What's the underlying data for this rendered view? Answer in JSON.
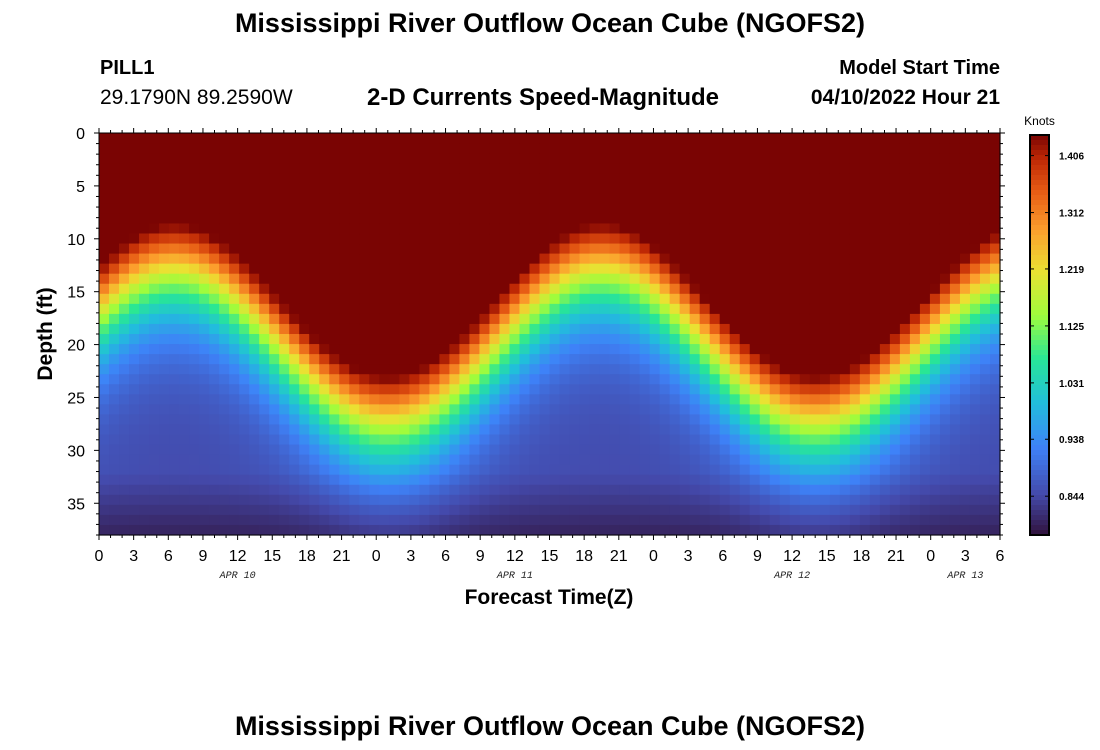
{
  "header": {
    "title": "Mississippi River Outflow Ocean Cube (NGOFS2)",
    "station": "PILL1",
    "coords": "29.1790N  89.2590W",
    "subtitle": "2-D Currents Speed-Magnitude",
    "model_label": "Model Start Time",
    "model_time": "04/10/2022 Hour 21"
  },
  "footer": {
    "title": "Mississippi River Outflow Ocean Cube (NGOFS2)"
  },
  "chart_data": {
    "type": "heatmap",
    "xlabel": "Forecast Time(Z)",
    "ylabel": "Depth (ft)",
    "x_unit": "hours since 04/10/2022 00Z",
    "x_range": [
      0,
      78
    ],
    "y_range": [
      0,
      38
    ],
    "y_reversed": true,
    "x_ticks": [
      "0",
      "3",
      "6",
      "9",
      "12",
      "15",
      "18",
      "21",
      "0",
      "3",
      "6",
      "9",
      "12",
      "15",
      "18",
      "21",
      "0",
      "3",
      "6",
      "9",
      "12",
      "15",
      "18",
      "21",
      "0",
      "3",
      "6"
    ],
    "y_ticks": [
      "0",
      "5",
      "10",
      "15",
      "20",
      "25",
      "30",
      "35"
    ],
    "date_labels": [
      {
        "label": "APR 10",
        "hour": 12
      },
      {
        "label": "APR 11",
        "hour": 36
      },
      {
        "label": "APR 12",
        "hour": 60
      },
      {
        "label": "APR 13",
        "hour": 75
      }
    ],
    "colorbar": {
      "unit": "Knots",
      "range": [
        0.78,
        1.44
      ],
      "ticks": [
        "1.406",
        "1.312",
        "1.219",
        "1.125",
        "1.031",
        "0.938",
        "0.844"
      ],
      "tick_values": [
        1.406,
        1.312,
        1.219,
        1.125,
        1.031,
        0.938,
        0.844
      ]
    },
    "speed_profile": {
      "description": "surface speed maxima near hours 24-27 and 61-63; minimum speeds at the bottom (~38 ft)",
      "surface_max_knots": 1.42,
      "bottom_min_knots": 0.8,
      "peak_hours": [
        25,
        62
      ],
      "trough_hours": [
        6,
        45
      ]
    },
    "grid": false
  }
}
